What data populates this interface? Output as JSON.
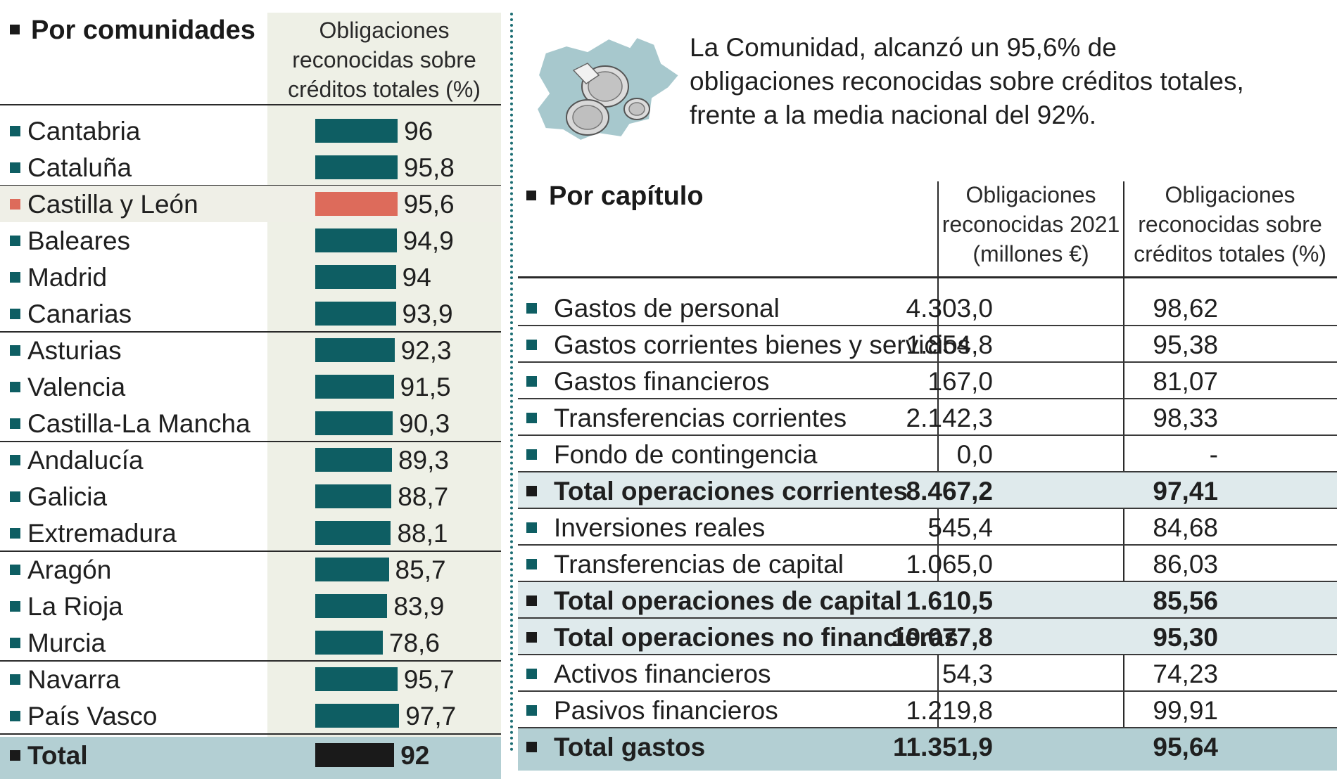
{
  "left_table": {
    "title": "Por comunidades",
    "column_header": "Obligaciones reconocidas sobre créditos totales (%)"
  },
  "summary": {
    "text": "La Comunidad, alcanzó un 95,6% de obligaciones reconocidas sobre créditos totales, frente a la media nacional del 92%."
  },
  "right_table": {
    "title": "Por capítulo",
    "col1_header": "Obligaciones reconocidas 2021 (millones €)",
    "col2_header": "Obligaciones reconocidas sobre créditos totales (%)"
  },
  "colors": {
    "bar": "#0e5e63",
    "highlight_bar": "#dd6b5b",
    "total_bar": "#1a1a1a",
    "total_row": "#b3cfd3",
    "subtotal_row": "#dfeaec"
  },
  "chart_data": [
    {
      "type": "bar",
      "orientation": "horizontal",
      "title": "Por comunidades",
      "ylabel": "Obligaciones reconocidas sobre créditos totales (%)",
      "xlim": [
        0,
        100
      ],
      "categories": [
        "Cantabria",
        "Cataluña",
        "Castilla y León",
        "Baleares",
        "Madrid",
        "Canarias",
        "Asturias",
        "Valencia",
        "Castilla-La Mancha",
        "Andalucía",
        "Galicia",
        "Extremadura",
        "Aragón",
        "La Rioja",
        "Murcia",
        "Navarra",
        "País Vasco",
        "Total"
      ],
      "labels": [
        "96",
        "95,8",
        "95,6",
        "94,9",
        "94",
        "93,9",
        "92,3",
        "91,5",
        "90,3",
        "89,3",
        "88,7",
        "88,1",
        "85,7",
        "83,9",
        "78,6",
        "95,7",
        "97,7",
        "92"
      ],
      "values": [
        96,
        95.8,
        95.6,
        94.9,
        94,
        93.9,
        92.3,
        91.5,
        90.3,
        89.3,
        88.7,
        88.1,
        85.7,
        83.9,
        78.6,
        95.7,
        97.7,
        92
      ],
      "highlight": "Castilla y León"
    },
    {
      "type": "table",
      "title": "Por capítulo",
      "columns": [
        "Obligaciones reconocidas 2021 (millones €)",
        "Obligaciones reconocidas sobre créditos totales (%)"
      ],
      "rows": [
        {
          "label": "Gastos de personal",
          "c1": "4.303,0",
          "c2": "98,62",
          "kind": "normal"
        },
        {
          "label": "Gastos corrientes bienes y servicios",
          "c1": "1.854,8",
          "c2": "95,38",
          "kind": "normal"
        },
        {
          "label": "Gastos financieros",
          "c1": "167,0",
          "c2": "81,07",
          "kind": "normal"
        },
        {
          "label": "Transferencias corrientes",
          "c1": "2.142,3",
          "c2": "98,33",
          "kind": "normal"
        },
        {
          "label": "Fondo de contingencia",
          "c1": "0,0",
          "c2": "-",
          "kind": "normal"
        },
        {
          "label": "Total operaciones corrientes",
          "c1": "8.467,2",
          "c2": "97,41",
          "kind": "total"
        },
        {
          "label": "Inversiones reales",
          "c1": "545,4",
          "c2": "84,68",
          "kind": "normal"
        },
        {
          "label": "Transferencias de capital",
          "c1": "1.065,0",
          "c2": "86,03",
          "kind": "normal"
        },
        {
          "label": "Total operaciones de capital",
          "c1": "1.610,5",
          "c2": "85,56",
          "kind": "total"
        },
        {
          "label": "Total operaciones no financieras",
          "c1": "10.077,8",
          "c2": "95,30",
          "kind": "total"
        },
        {
          "label": "Activos financieros",
          "c1": "54,3",
          "c2": "74,23",
          "kind": "normal"
        },
        {
          "label": "Pasivos financieros",
          "c1": "1.219,8",
          "c2": "99,91",
          "kind": "normal"
        },
        {
          "label": "Total gastos",
          "c1": "11.351,9",
          "c2": "95,64",
          "kind": "grand"
        }
      ]
    }
  ]
}
